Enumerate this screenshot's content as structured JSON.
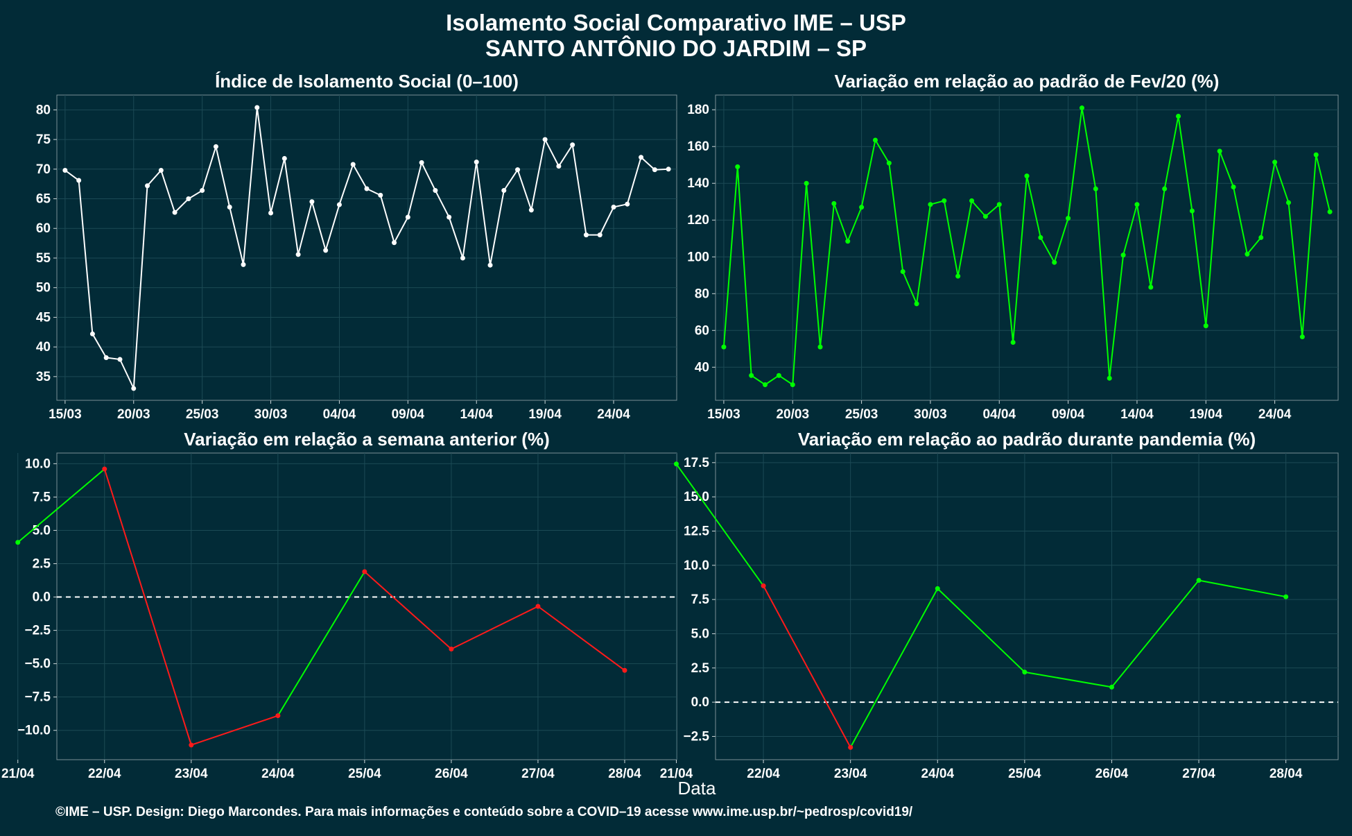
{
  "title_line1": "Isolamento Social Comparativo IME – USP",
  "title_line2": "SANTO ANTÔNIO DO JARDIM – SP",
  "xlabel": "Data",
  "footer": "©IME – USP. Design: Diego Marcondes. Para mais informações e conteúdo sobre a COVID–19 acesse www.ime.usp.br/~pedrosp/covid19/",
  "colors": {
    "background": "#022b37",
    "panel": "#022b37",
    "white_line": "#ffffff",
    "green_line": "#00ff00",
    "red_line": "#ff1a1a",
    "grid": "#1c4a55"
  },
  "chart_data": [
    {
      "type": "line",
      "title": "Índice de Isolamento Social (0–100)",
      "x_tick_labels": [
        "15/03",
        "20/03",
        "25/03",
        "30/03",
        "04/04",
        "09/04",
        "14/04",
        "19/04",
        "24/04"
      ],
      "x_tick_days": [
        0,
        5,
        10,
        15,
        20,
        25,
        30,
        35,
        40
      ],
      "xlim": [
        -0.6,
        44.6
      ],
      "ylim": [
        31,
        82.5
      ],
      "y_ticks": [
        35,
        40,
        45,
        50,
        55,
        60,
        65,
        70,
        75,
        80
      ],
      "start_date": "15/03",
      "series": [
        {
          "color": "#ffffff",
          "values": [
            69.8,
            68.1,
            42.2,
            38.2,
            37.9,
            33.0,
            67.2,
            69.8,
            62.7,
            65.0,
            66.4,
            73.8,
            63.6,
            53.9,
            80.4,
            62.6,
            71.8,
            55.6,
            64.5,
            56.3,
            64.0,
            70.8,
            66.7,
            65.6,
            57.6,
            61.9,
            71.1,
            66.4,
            61.9,
            55.0,
            71.2,
            53.8,
            66.4,
            69.9,
            63.1,
            75.0,
            70.5,
            74.1,
            58.9,
            58.9,
            63.6,
            64.1,
            72.0,
            69.9,
            70.0
          ]
        }
      ]
    },
    {
      "type": "line",
      "title": "Variação em relação ao padrão de Fev/20 (%)",
      "x_tick_labels": [
        "15/03",
        "20/03",
        "25/03",
        "30/03",
        "04/04",
        "09/04",
        "14/04",
        "19/04",
        "24/04"
      ],
      "x_tick_days": [
        0,
        5,
        10,
        15,
        20,
        25,
        30,
        35,
        40
      ],
      "xlim": [
        -0.6,
        44.6
      ],
      "ylim": [
        22,
        188
      ],
      "y_ticks": [
        40,
        60,
        80,
        100,
        120,
        140,
        160,
        180
      ],
      "start_date": "15/03",
      "series": [
        {
          "color": "#00ff00",
          "values": [
            51,
            149,
            35.5,
            30.5,
            35.5,
            30.5,
            140,
            51,
            129,
            108.5,
            127,
            163.5,
            151,
            92,
            74.5,
            128.5,
            130.5,
            89.5,
            130.5,
            122,
            128.5,
            53.5,
            144,
            110.5,
            97,
            121,
            181,
            137,
            34,
            101,
            128.5,
            83.5,
            137,
            176.5,
            125,
            62.5,
            157.5,
            138,
            101.5,
            110.5,
            151.5,
            129.5,
            56.5,
            155.5,
            124.5
          ]
        }
      ]
    },
    {
      "type": "line",
      "title": "Variação em relação a semana anterior (%)",
      "categories": [
        "21/04",
        "22/04",
        "23/04",
        "24/04",
        "25/04",
        "26/04",
        "27/04",
        "28/04"
      ],
      "values": [
        4.1,
        9.6,
        -11.1,
        -8.9,
        1.9,
        -3.9,
        -0.7,
        -5.5
      ],
      "ylim": [
        -12.2,
        10.8
      ],
      "y_ticks": [
        -10.0,
        -7.5,
        -5.0,
        -2.5,
        0.0,
        2.5,
        5.0,
        7.5,
        10.0
      ],
      "y_tick_labels": [
        "−10.0",
        "−7.5",
        "−5.0",
        "−2.5",
        "0.0",
        "2.5",
        "5.0",
        "7.5",
        "10.0"
      ],
      "reference_line": 0,
      "segment_colors": [
        "#00ff00",
        "#ff1a1a",
        "#ff1a1a",
        "#00ff00",
        "#ff1a1a",
        "#ff1a1a",
        "#ff1a1a"
      ]
    },
    {
      "type": "line",
      "title": "Variação em relação ao padrão durante pandemia (%)",
      "categories": [
        "21/04",
        "22/04",
        "23/04",
        "24/04",
        "25/04",
        "26/04",
        "27/04",
        "28/04"
      ],
      "values": [
        17.4,
        8.5,
        -3.3,
        8.3,
        2.2,
        1.1,
        8.9,
        7.7
      ],
      "ylim": [
        -4.2,
        18.2
      ],
      "y_ticks": [
        -2.5,
        0.0,
        2.5,
        5.0,
        7.5,
        10.0,
        12.5,
        15.0,
        17.5
      ],
      "y_tick_labels": [
        "−2.5",
        "0.0",
        "2.5",
        "5.0",
        "7.5",
        "10.0",
        "12.5",
        "15.0",
        "17.5"
      ],
      "reference_line": 0,
      "segment_colors": [
        "#00ff00",
        "#ff1a1a",
        "#00ff00",
        "#00ff00",
        "#00ff00",
        "#00ff00",
        "#00ff00"
      ]
    }
  ]
}
